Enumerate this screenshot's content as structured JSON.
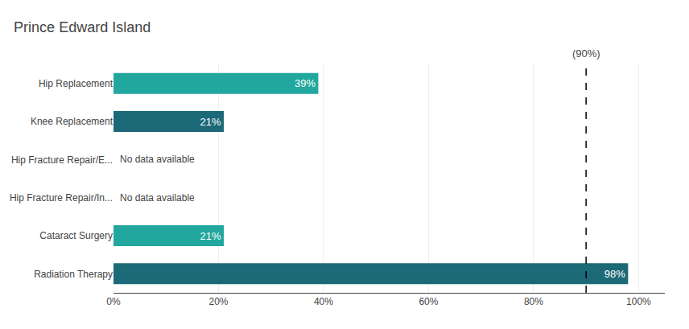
{
  "chart_data": {
    "type": "bar",
    "orientation": "horizontal",
    "title": "Prince Edward Island",
    "categories": [
      "Hip Replacement",
      "Knee Replacement",
      "Hip Fracture Repair/E...",
      "Hip Fracture Repair/In...",
      "Cataract Surgery",
      "Radiation Therapy"
    ],
    "values": [
      39,
      21,
      null,
      null,
      21,
      98
    ],
    "value_labels": [
      "39%",
      "21%",
      null,
      null,
      "21%",
      "98%"
    ],
    "data_labels": true,
    "colors": [
      "#22a79e",
      "#1c6978",
      "#22a79e",
      "#22a79e",
      "#22a79e",
      "#1c6978"
    ],
    "xlim": [
      0,
      105
    ],
    "xticks": [
      {
        "value": 0,
        "label": "0%"
      },
      {
        "value": 20,
        "label": "20%"
      },
      {
        "value": 40,
        "label": "40%"
      },
      {
        "value": 60,
        "label": "60%"
      },
      {
        "value": 80,
        "label": "80%"
      },
      {
        "value": 100,
        "label": "100%"
      }
    ],
    "grid": "x",
    "target": {
      "value": 90,
      "label": "(90%)",
      "line_style": "dashed"
    },
    "annotations": [
      {
        "text": "No data available",
        "category": "Hip Fracture Repair/E..."
      },
      {
        "text": "No data available",
        "category": "Hip Fracture Repair/In..."
      }
    ]
  }
}
